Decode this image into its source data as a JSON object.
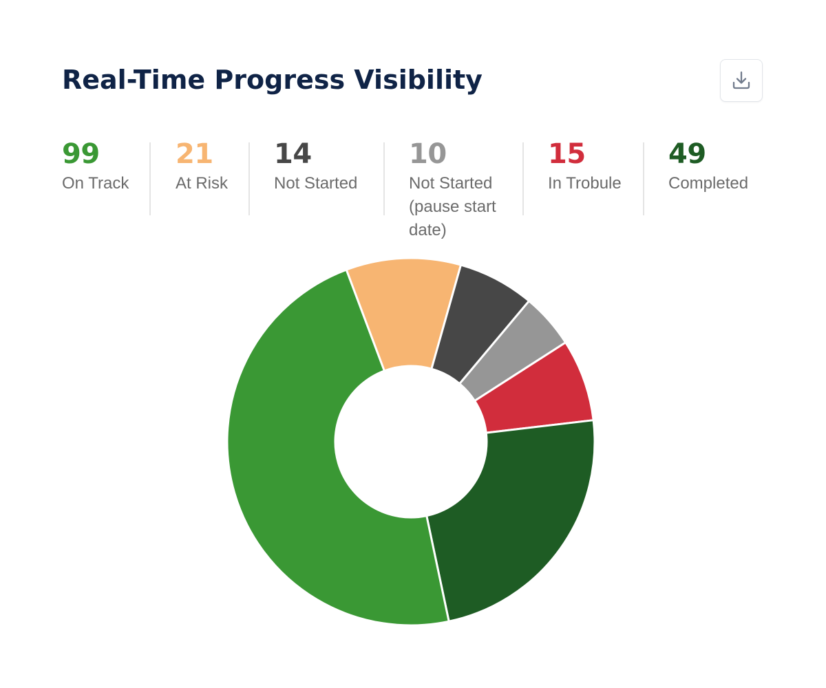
{
  "header": {
    "title": "Real-Time Progress Visibility",
    "download_icon": "download-icon"
  },
  "stats": [
    {
      "value": "99",
      "label": "On Track",
      "color": "#3a9834"
    },
    {
      "value": "21",
      "label": "At Risk",
      "color": "#f7b572"
    },
    {
      "value": "14",
      "label": "Not Started",
      "color": "#474747"
    },
    {
      "value": "10",
      "label": "Not Started (pause start date)",
      "color": "#969696"
    },
    {
      "value": "15",
      "label": "In Trobule",
      "color": "#d12d3c"
    },
    {
      "value": "49",
      "label": "Completed",
      "color": "#1e5c24"
    }
  ],
  "chart_data": {
    "type": "pie",
    "donut": true,
    "categories": [
      "On Track",
      "At Risk",
      "Not Started",
      "Not Started (pause start date)",
      "In Trobule",
      "Completed"
    ],
    "values": [
      99,
      21,
      14,
      10,
      15,
      49
    ],
    "colors": [
      "#3a9834",
      "#f7b572",
      "#474747",
      "#969696",
      "#d12d3c",
      "#1e5c24"
    ],
    "legend": "none"
  }
}
